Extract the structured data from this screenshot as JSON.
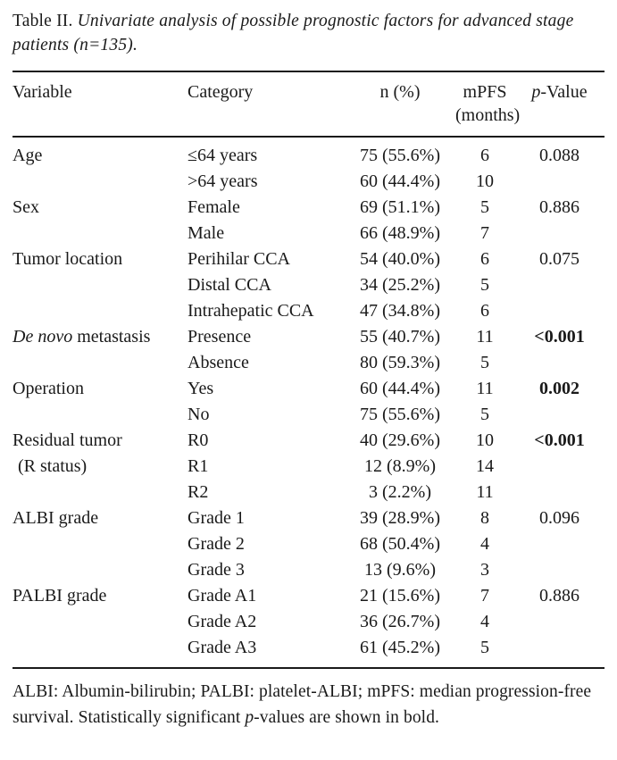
{
  "title": {
    "label": "Table II.",
    "text": " Univariate analysis of possible prognostic factors for advanced stage patients (n=135)."
  },
  "header": {
    "variable": "Variable",
    "category": "Category",
    "n": "n (%)",
    "mpfs_line1": "mPFS",
    "mpfs_line2": "(months)",
    "p_italic": "p",
    "p_rest": "-Value"
  },
  "rows": [
    {
      "variable_italic": "",
      "variable": "Age",
      "indent": false,
      "category": "≤64 years",
      "n": "75 (55.6%)",
      "mpfs": "6",
      "p": "0.088",
      "p_bold": false
    },
    {
      "variable_italic": "",
      "variable": "",
      "indent": false,
      "category": ">64 years",
      "n": "60 (44.4%)",
      "mpfs": "10",
      "p": "",
      "p_bold": false
    },
    {
      "variable_italic": "",
      "variable": "Sex",
      "indent": false,
      "category": "Female",
      "n": "69 (51.1%)",
      "mpfs": "5",
      "p": "0.886",
      "p_bold": false
    },
    {
      "variable_italic": "",
      "variable": "",
      "indent": false,
      "category": "Male",
      "n": "66 (48.9%)",
      "mpfs": "7",
      "p": "",
      "p_bold": false
    },
    {
      "variable_italic": "",
      "variable": "Tumor location",
      "indent": false,
      "category": "Perihilar CCA",
      "n": "54 (40.0%)",
      "mpfs": "6",
      "p": "0.075",
      "p_bold": false
    },
    {
      "variable_italic": "",
      "variable": "",
      "indent": false,
      "category": "Distal CCA",
      "n": "34 (25.2%)",
      "mpfs": "5",
      "p": "",
      "p_bold": false
    },
    {
      "variable_italic": "",
      "variable": "",
      "indent": false,
      "category": "Intrahepatic CCA",
      "n": "47 (34.8%)",
      "mpfs": "6",
      "p": "",
      "p_bold": false
    },
    {
      "variable_italic": "De novo",
      "variable": " metastasis",
      "indent": false,
      "category": "Presence",
      "n": "55 (40.7%)",
      "mpfs": "11",
      "p": "<0.001",
      "p_bold": true
    },
    {
      "variable_italic": "",
      "variable": "",
      "indent": false,
      "category": "Absence",
      "n": "80 (59.3%)",
      "mpfs": "5",
      "p": "",
      "p_bold": false
    },
    {
      "variable_italic": "",
      "variable": "Operation",
      "indent": false,
      "category": "Yes",
      "n": "60 (44.4%)",
      "mpfs": "11",
      "p": "0.002",
      "p_bold": true
    },
    {
      "variable_italic": "",
      "variable": "",
      "indent": false,
      "category": "No",
      "n": "75 (55.6%)",
      "mpfs": "5",
      "p": "",
      "p_bold": false
    },
    {
      "variable_italic": "",
      "variable": "Residual tumor",
      "indent": false,
      "category": "R0",
      "n": "40 (29.6%)",
      "mpfs": "10",
      "p": "<0.001",
      "p_bold": true
    },
    {
      "variable_italic": "",
      "variable": "(R status)",
      "indent": true,
      "category": "R1",
      "n": "12 (8.9%)",
      "mpfs": "14",
      "p": "",
      "p_bold": false
    },
    {
      "variable_italic": "",
      "variable": "",
      "indent": false,
      "category": "R2",
      "n": "3 (2.2%)",
      "mpfs": "11",
      "p": "",
      "p_bold": false
    },
    {
      "variable_italic": "",
      "variable": "ALBI grade",
      "indent": false,
      "category": "Grade 1",
      "n": "39 (28.9%)",
      "mpfs": "8",
      "p": "0.096",
      "p_bold": false
    },
    {
      "variable_italic": "",
      "variable": "",
      "indent": false,
      "category": "Grade 2",
      "n": "68 (50.4%)",
      "mpfs": "4",
      "p": "",
      "p_bold": false
    },
    {
      "variable_italic": "",
      "variable": "",
      "indent": false,
      "category": "Grade 3",
      "n": "13 (9.6%)",
      "mpfs": "3",
      "p": "",
      "p_bold": false
    },
    {
      "variable_italic": "",
      "variable": "PALBI grade",
      "indent": false,
      "category": "Grade A1",
      "n": "21 (15.6%)",
      "mpfs": "7",
      "p": "0.886",
      "p_bold": false
    },
    {
      "variable_italic": "",
      "variable": "",
      "indent": false,
      "category": "Grade A2",
      "n": "36 (26.7%)",
      "mpfs": "4",
      "p": "",
      "p_bold": false
    },
    {
      "variable_italic": "",
      "variable": "",
      "indent": false,
      "category": "Grade A3",
      "n": "61 (45.2%)",
      "mpfs": "5",
      "p": "",
      "p_bold": false
    }
  ],
  "footnote": {
    "part1": "ALBI: Albumin-bilirubin; PALBI: platelet-ALBI; mPFS: median progression-free survival. Statistically significant ",
    "p_italic": "p",
    "part2": "-values are shown in bold."
  },
  "colors": {
    "text": "#1a1a1a",
    "background": "#ffffff",
    "rule": "#1a1a1a"
  }
}
